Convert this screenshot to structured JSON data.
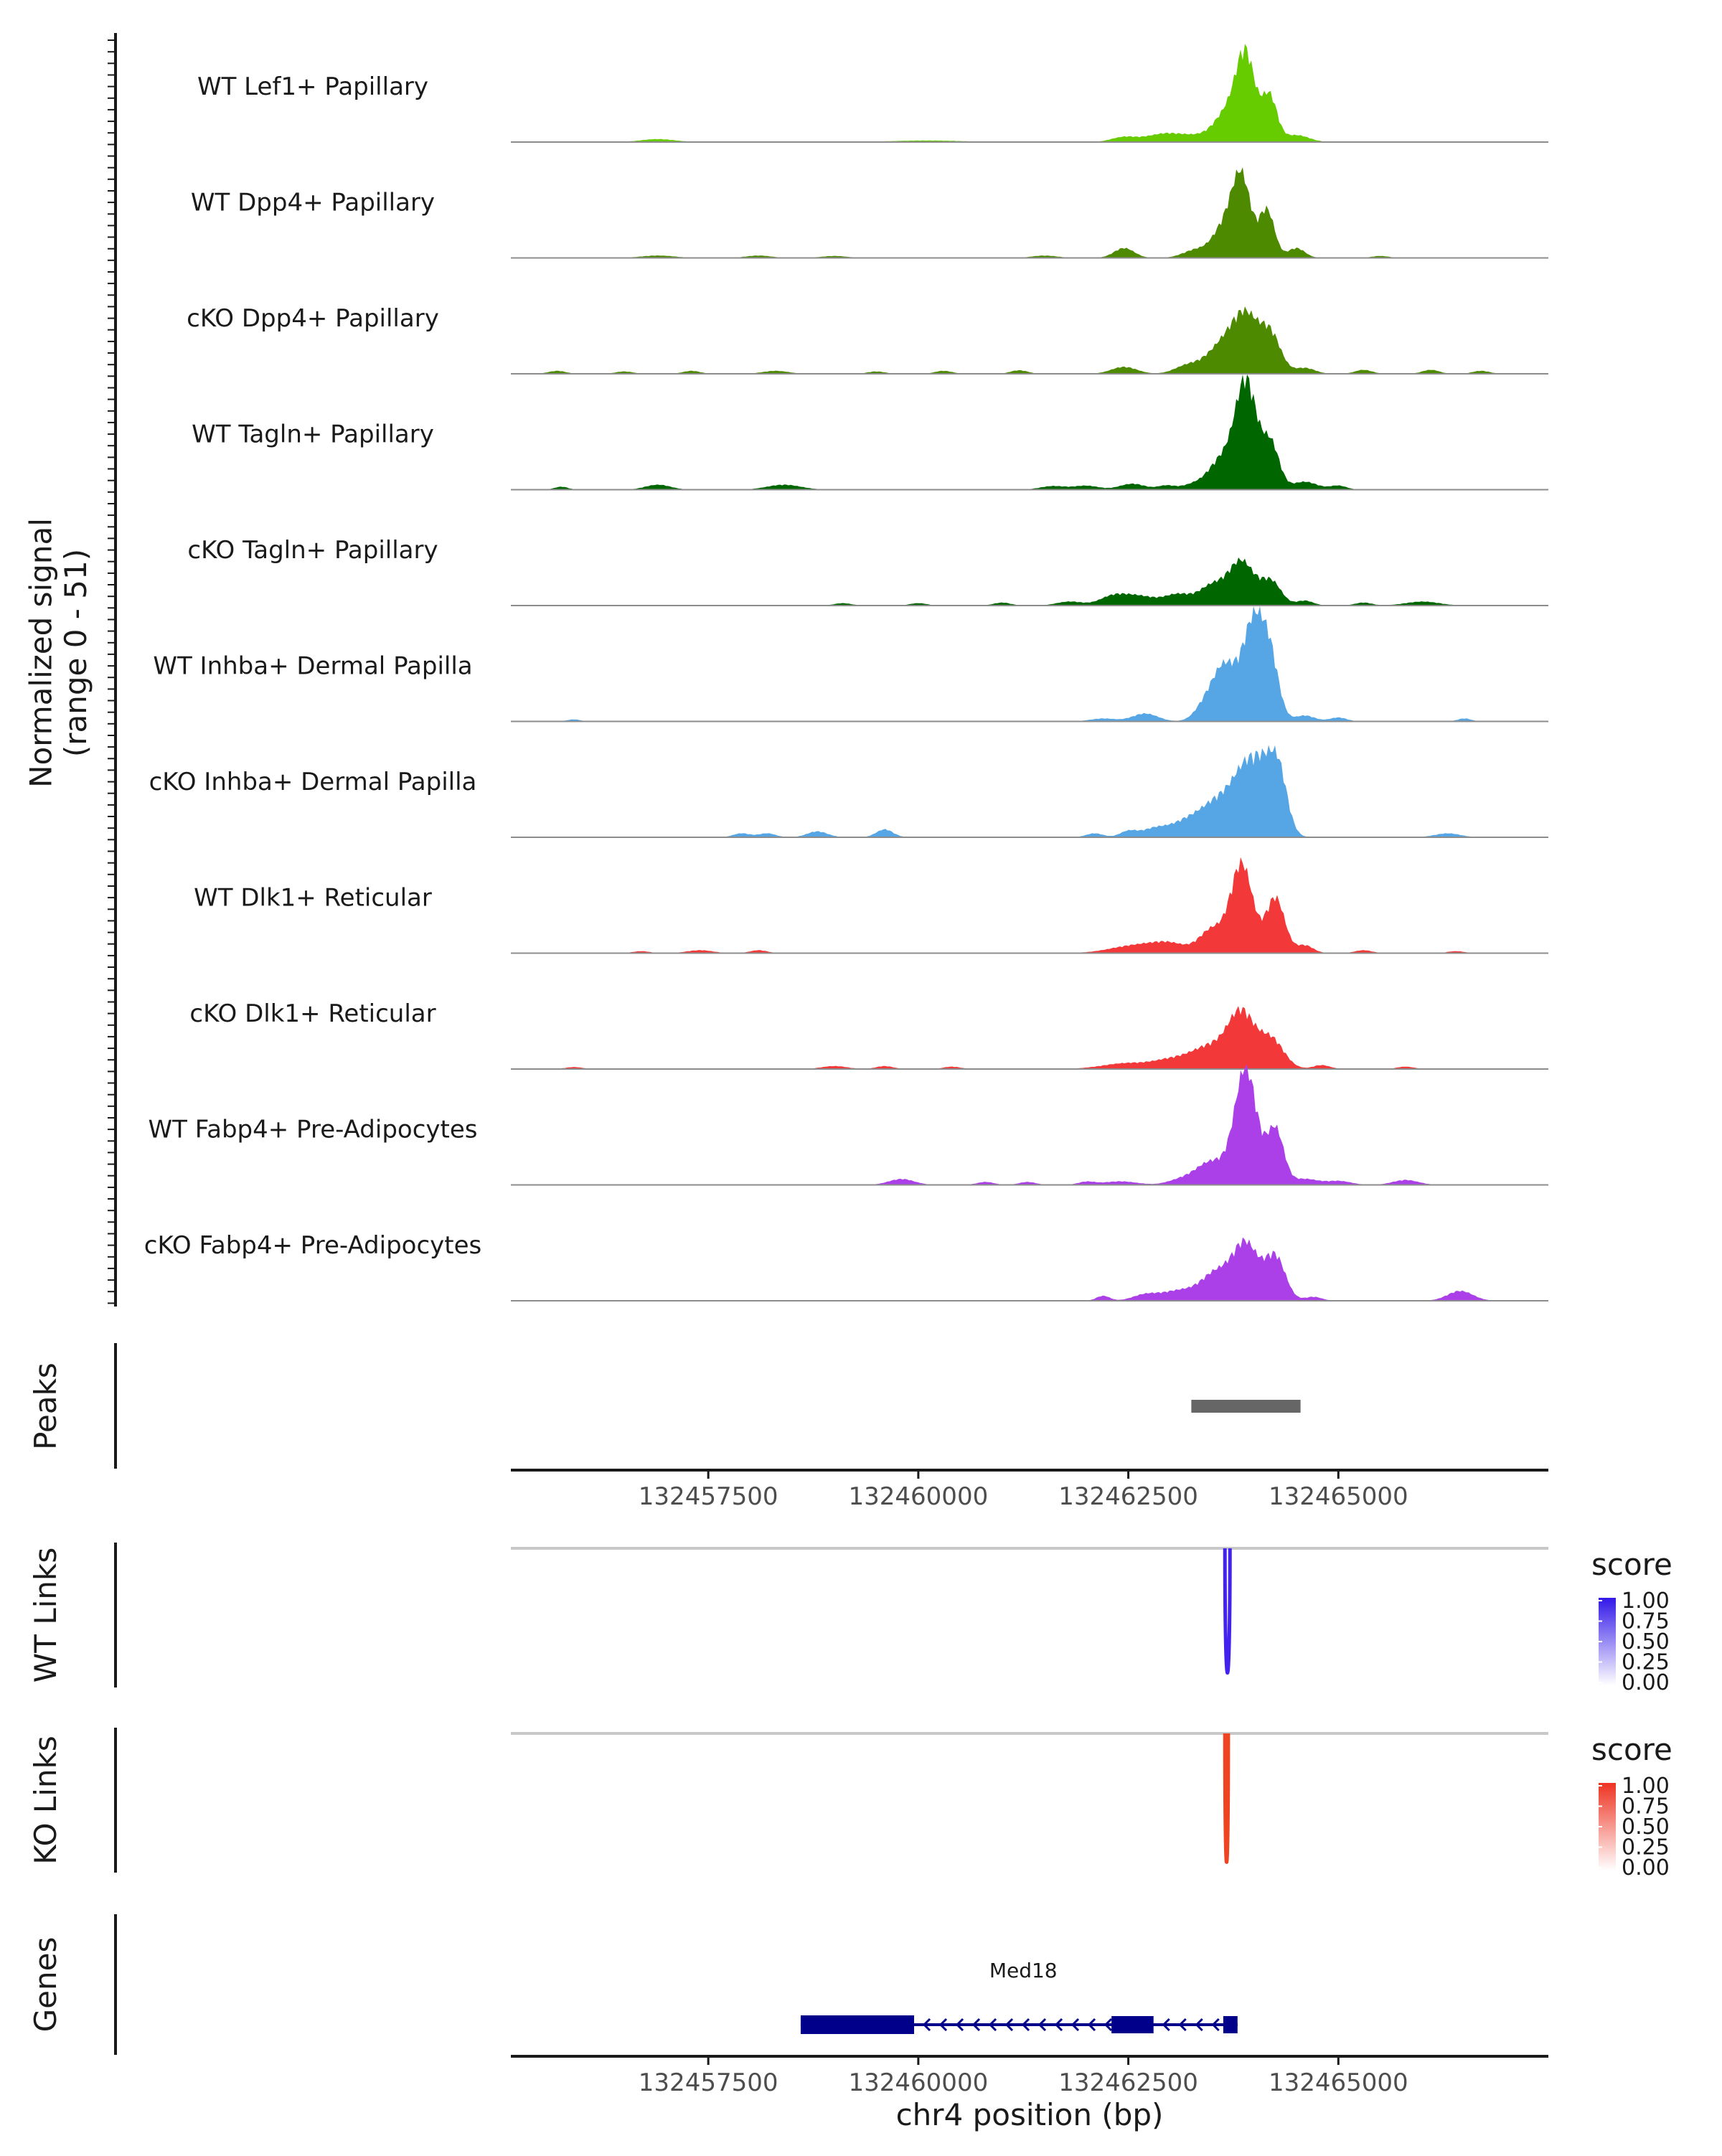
{
  "chart_data": {
    "type": "area",
    "region": {
      "chromosome": "chr4",
      "start": 132455150,
      "end": 132467500
    },
    "y_axis_title": [
      "Normalized signal",
      "(range 0 - 51)"
    ],
    "signal_range": [
      0,
      51
    ],
    "coverage_tracks": [
      {
        "name": "WT Lef1+ Papillary",
        "color": "#66cc00",
        "peaks": [
          [
            132456900,
            1.5,
            200
          ],
          [
            132460100,
            0.8,
            400
          ],
          [
            132462450,
            2.5,
            150
          ],
          [
            132462900,
            3.5,
            200
          ],
          [
            132463300,
            3,
            250
          ],
          [
            132463700,
            15,
            160
          ],
          [
            132463900,
            40,
            110
          ],
          [
            132464180,
            23,
            90
          ],
          [
            132464500,
            3.5,
            150
          ]
        ]
      },
      {
        "name": "WT Dpp4+ Papillary",
        "color": "#4d8a00",
        "peaks": [
          [
            132456900,
            1.2,
            200
          ],
          [
            132458100,
            1.2,
            150
          ],
          [
            132459000,
            1,
            150
          ],
          [
            132461500,
            1.2,
            150
          ],
          [
            132462450,
            5,
            120
          ],
          [
            132463300,
            4,
            150
          ],
          [
            132463650,
            16,
            140
          ],
          [
            132463850,
            38,
            110
          ],
          [
            132464150,
            24,
            90
          ],
          [
            132464500,
            5,
            100
          ],
          [
            132465500,
            1,
            100
          ]
        ]
      },
      {
        "name": "cKO Dpp4+ Papillary",
        "color": "#4d8a00",
        "peaks": [
          [
            132455700,
            1.5,
            100
          ],
          [
            132456500,
            1.2,
            100
          ],
          [
            132457300,
            1.5,
            100
          ],
          [
            132458300,
            1.5,
            150
          ],
          [
            132459500,
            1.2,
            100
          ],
          [
            132460300,
            1.5,
            100
          ],
          [
            132461200,
            1.8,
            100
          ],
          [
            132462450,
            3.5,
            150
          ],
          [
            132463200,
            4,
            150
          ],
          [
            132463600,
            13,
            180
          ],
          [
            132463900,
            28,
            160
          ],
          [
            132464200,
            18,
            120
          ],
          [
            132464600,
            3,
            120
          ],
          [
            132465300,
            2,
            100
          ],
          [
            132466100,
            2,
            100
          ],
          [
            132466700,
            1.5,
            100
          ]
        ]
      },
      {
        "name": "WT Tagln+ Papillary",
        "color": "#006600",
        "peaks": [
          [
            132455750,
            1.5,
            80
          ],
          [
            132456900,
            2.5,
            150
          ],
          [
            132458400,
            2.5,
            200
          ],
          [
            132461600,
            1.8,
            150
          ],
          [
            132462000,
            2,
            150
          ],
          [
            132462950,
            2,
            100
          ],
          [
            132462550,
            3,
            150
          ],
          [
            132463300,
            3,
            150
          ],
          [
            132463600,
            14,
            140
          ],
          [
            132463900,
            55,
            130
          ],
          [
            132464200,
            22,
            100
          ],
          [
            132464600,
            4,
            150
          ],
          [
            132465000,
            2,
            100
          ]
        ]
      },
      {
        "name": "cKO Tagln+ Papillary",
        "color": "#006600",
        "peaks": [
          [
            132459100,
            1.2,
            100
          ],
          [
            132460000,
            1.2,
            100
          ],
          [
            132461000,
            1.5,
            100
          ],
          [
            132461800,
            2,
            150
          ],
          [
            132462300,
            3,
            150
          ],
          [
            132462600,
            5,
            250
          ],
          [
            132463100,
            5,
            150
          ],
          [
            132463500,
            10,
            160
          ],
          [
            132463850,
            22,
            150
          ],
          [
            132464200,
            12,
            120
          ],
          [
            132464600,
            2.5,
            100
          ],
          [
            132465300,
            1.5,
            100
          ],
          [
            132466000,
            2,
            200
          ]
        ]
      },
      {
        "name": "WT Inhba+ Dermal Papilla",
        "color": "#56a6e6",
        "peaks": [
          [
            132455900,
            1,
            80
          ],
          [
            132462200,
            1.5,
            150
          ],
          [
            132462700,
            4,
            150
          ],
          [
            132463400,
            6,
            120
          ],
          [
            132463650,
            28,
            150
          ],
          [
            132464000,
            50,
            130
          ],
          [
            132464200,
            25,
            100
          ],
          [
            132464600,
            3,
            120
          ],
          [
            132465000,
            2,
            100
          ],
          [
            132466500,
            1.5,
            80
          ]
        ]
      },
      {
        "name": "cKO Inhba+ Dermal Papilla",
        "color": "#56a6e6",
        "peaks": [
          [
            132457900,
            2,
            100
          ],
          [
            132458200,
            2,
            100
          ],
          [
            132458800,
            3,
            120
          ],
          [
            132459600,
            4,
            100
          ],
          [
            132462100,
            2,
            100
          ],
          [
            132462500,
            3,
            100
          ],
          [
            132462800,
            4,
            150
          ],
          [
            132463200,
            8,
            200
          ],
          [
            132463600,
            18,
            200
          ],
          [
            132463900,
            26,
            150
          ],
          [
            132464150,
            30,
            150
          ],
          [
            132464300,
            20,
            100
          ],
          [
            132466300,
            2,
            150
          ]
        ]
      },
      {
        "name": "WT Dlk1+ Reticular",
        "color": "#f23838",
        "peaks": [
          [
            132456700,
            1,
            100
          ],
          [
            132457400,
            1.5,
            150
          ],
          [
            132458100,
            1.5,
            100
          ],
          [
            132462600,
            4,
            300
          ],
          [
            132463000,
            4,
            200
          ],
          [
            132463500,
            12,
            150
          ],
          [
            132463850,
            45,
            130
          ],
          [
            132464250,
            28,
            110
          ],
          [
            132464600,
            4,
            100
          ],
          [
            132465300,
            1.5,
            100
          ],
          [
            132466400,
            1,
            100
          ]
        ]
      },
      {
        "name": "cKO Dlk1+ Reticular",
        "color": "#f23838",
        "peaks": [
          [
            132455900,
            1,
            100
          ],
          [
            132459000,
            1.5,
            150
          ],
          [
            132459600,
            1.5,
            100
          ],
          [
            132460400,
            1.2,
            100
          ],
          [
            132462500,
            3,
            300
          ],
          [
            132463000,
            3.5,
            200
          ],
          [
            132463500,
            12,
            250
          ],
          [
            132463850,
            25,
            150
          ],
          [
            132464200,
            15,
            150
          ],
          [
            132464800,
            2,
            100
          ],
          [
            132465800,
            1.2,
            100
          ]
        ]
      },
      {
        "name": "WT Fabp4+ Pre-Adipocytes",
        "color": "#ab40e8",
        "peaks": [
          [
            132459800,
            3,
            150
          ],
          [
            132460800,
            1.5,
            100
          ],
          [
            132461300,
            1.5,
            100
          ],
          [
            132462000,
            1.5,
            100
          ],
          [
            132462400,
            1.8,
            200
          ],
          [
            132463100,
            2,
            150
          ],
          [
            132463500,
            12,
            200
          ],
          [
            132463900,
            58,
            130
          ],
          [
            132464250,
            28,
            100
          ],
          [
            132464600,
            3,
            150
          ],
          [
            132465000,
            2,
            150
          ],
          [
            132465800,
            2.5,
            150
          ]
        ]
      },
      {
        "name": "cKO Fabp4+ Pre-Adipocytes",
        "color": "#ab40e8",
        "peaks": [
          [
            132462200,
            2.5,
            80
          ],
          [
            132462700,
            3,
            150
          ],
          [
            132463100,
            5,
            200
          ],
          [
            132463550,
            14,
            180
          ],
          [
            132463900,
            28,
            150
          ],
          [
            132464250,
            22,
            120
          ],
          [
            132464700,
            2,
            100
          ],
          [
            132466450,
            5,
            150
          ]
        ]
      }
    ],
    "peaks_track": {
      "label": "Peaks",
      "start": 132463250,
      "end": 132464550,
      "color": "#666666"
    },
    "x_ticks": [
      132457500,
      132460000,
      132462500,
      132465000
    ],
    "x_tick_labels": [
      "132457500",
      "132460000",
      "132462500",
      "132465000"
    ],
    "x_axis_title": "chr4 position (bp)",
    "links_tracks": [
      {
        "label": "WT Links",
        "link_start": 132463650,
        "link_end": 132463710,
        "score": 1.0,
        "color": "#4422ee",
        "legend_title": "score",
        "legend_ticks": [
          "1.00",
          "0.75",
          "0.50",
          "0.25",
          "0.00"
        ],
        "legend_high": "#3318e8",
        "legend_low": "#ffffff"
      },
      {
        "label": "KO Links",
        "link_start": 132463650,
        "link_end": 132463690,
        "score": 1.0,
        "color": "#ee4422",
        "legend_title": "score",
        "legend_ticks": [
          "1.00",
          "0.75",
          "0.50",
          "0.25",
          "0.00"
        ],
        "legend_high": "#ee3322",
        "legend_low": "#ffffff"
      }
    ],
    "genes_track": {
      "label": "Genes",
      "gene_name": "Med18",
      "strand": "-",
      "color": "#00008b",
      "gene_start": 132458600,
      "gene_end": 132463800,
      "exons": [
        [
          132458600,
          132459950
        ],
        [
          132462300,
          132462800
        ],
        [
          132463630,
          132463800
        ]
      ],
      "label_position": 132461250
    }
  }
}
